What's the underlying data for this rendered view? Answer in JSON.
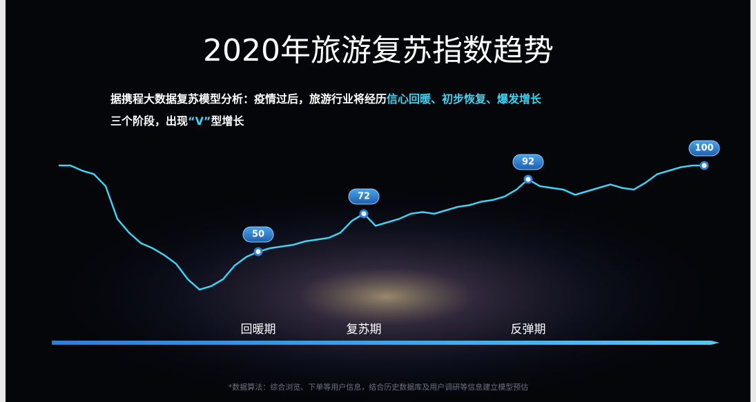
{
  "chart_data": {
    "type": "bar-line",
    "title": "2020年旅游复苏指数趋势",
    "subtitle": {
      "line1": "据携程大数据复苏模型分析：疫情过后，旅游行业将经历",
      "highlight1": "信心回暖、初步恢复、爆发增长",
      "line2a": "三个阶段，出现",
      "highlight2": "“V”",
      "line2b": "型增长"
    },
    "values": [
      100,
      100,
      97,
      95,
      88,
      69,
      61,
      55,
      52,
      48,
      43,
      34,
      28,
      30,
      34,
      42,
      47,
      50,
      52,
      53,
      54,
      56,
      57,
      58,
      61,
      68,
      72,
      65,
      67,
      69,
      72,
      73,
      72,
      74,
      76,
      77,
      79,
      80,
      82,
      86,
      92,
      88,
      87,
      86,
      83,
      85,
      87,
      89,
      87,
      86,
      90,
      95,
      97,
      99,
      100,
      100
    ],
    "value_labels": [
      null,
      null,
      null,
      null,
      null,
      null,
      null,
      null,
      null,
      null,
      null,
      null,
      null,
      null,
      null,
      null,
      null,
      "50",
      null,
      null,
      null,
      null,
      null,
      null,
      null,
      null,
      "72",
      null,
      null,
      null,
      null,
      null,
      null,
      null,
      null,
      null,
      null,
      null,
      null,
      null,
      "92",
      null,
      null,
      null,
      null,
      null,
      null,
      null,
      null,
      null,
      null,
      null,
      null,
      null,
      null,
      "100"
    ],
    "phases": [
      "回暖期",
      "复苏期",
      "反弹期"
    ],
    "line_color": "#3fd4f4",
    "ylim": [
      0,
      100
    ],
    "footnote": "*数据算法：综合浏览、下单等用户信息，结合历史数据库及用户调研等信息建立模型预估"
  }
}
